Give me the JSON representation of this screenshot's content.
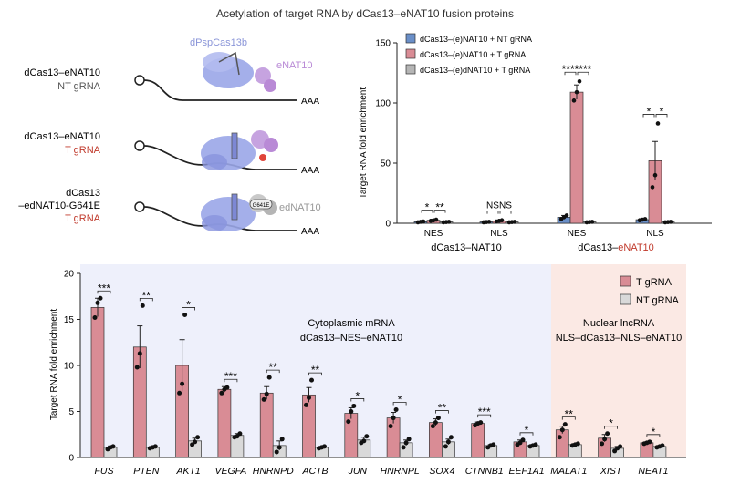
{
  "title": "Acetylation of target RNA by dCas13–eNAT10 fusion proteins",
  "colors": {
    "t_grna": "#d98c95",
    "nt_grna": "#d9d9d9",
    "nt_blue": "#6a8fc8",
    "dead": "#b5b5b5",
    "red_text": "#c0392b",
    "cas_purple": "#9aa6e8",
    "nat_purple": "#b98ad6",
    "cyto_bg": "#eef0fb",
    "nuc_bg": "#fbe9e4"
  },
  "schematic": {
    "constructs": [
      {
        "line1": "dCas13–eNAT10",
        "line2": "",
        "grna": "NT gRNA",
        "grna_red": false
      },
      {
        "line1": "dCas13–eNAT10",
        "line2": "",
        "grna": "T gRNA",
        "grna_red": true
      },
      {
        "line1": "dCas13",
        "line2": "–edNAT10-G641E",
        "grna": "T gRNA",
        "grna_red": true
      }
    ],
    "protein_label": "dPspCas13b",
    "enzyme_label": "eNAT10",
    "dead_enzyme_label": "edNAT10",
    "mutation_badge": "G641E",
    "polya": "AAA"
  },
  "chart_data": [
    {
      "type": "bar",
      "id": "top",
      "ylabel": "Target RNA fold enrichment",
      "ylim": [
        0,
        150
      ],
      "yticks": [
        0,
        50,
        100,
        150
      ],
      "legend": [
        "dCas13–(e)NAT10 + NT gRNA",
        "dCas13–(e)NAT10 + T gRNA",
        "dCas13–(e)dNAT10 + T gRNA"
      ],
      "legend_position": "top-left",
      "groups": [
        {
          "label": "NES",
          "values": [
            1.2,
            2.5,
            1.0
          ],
          "errors": [
            0.4,
            0.8,
            0.3
          ],
          "points": [
            [
              0.8,
              1.2,
              1.5
            ],
            [
              2.0,
              2.4,
              3.0
            ],
            [
              0.8,
              1.0,
              1.2
            ]
          ],
          "sig": [
            "*",
            "**"
          ]
        },
        {
          "label": "NLS",
          "values": [
            1.0,
            2.0,
            1.0
          ],
          "errors": [
            0.3,
            0.6,
            0.3
          ],
          "points": [
            [
              0.8,
              1.0,
              1.2
            ],
            [
              1.5,
              2.0,
              2.5
            ],
            [
              0.8,
              1.0,
              1.2
            ]
          ],
          "sig": [
            "NS",
            "NS"
          ]
        },
        {
          "label": "NES",
          "values": [
            5.0,
            109.0,
            1.0
          ],
          "errors": [
            1.5,
            6.0,
            0.3
          ],
          "points": [
            [
              3.5,
              5.0,
              6.5
            ],
            [
              102,
              109,
              118
            ],
            [
              0.8,
              1.0,
              1.2
            ]
          ],
          "sig": [
            "****",
            "****"
          ]
        },
        {
          "label": "NLS",
          "values": [
            3.0,
            52.0,
            1.0
          ],
          "errors": [
            0.8,
            16.0,
            0.3
          ],
          "points": [
            [
              2.5,
              3.0,
              3.5
            ],
            [
              30,
              40,
              83
            ],
            [
              0.8,
              1.0,
              1.2
            ]
          ],
          "sig": [
            "*",
            "*"
          ]
        }
      ],
      "construct_labels": [
        {
          "text": "dCas13–NAT10",
          "red": false
        },
        {
          "text": "dCas13–",
          "red_part": "eNAT10",
          "red": true
        }
      ]
    },
    {
      "type": "bar",
      "id": "bottom",
      "ylabel": "Target RNA fold enrichment",
      "ylim": [
        0,
        20
      ],
      "yticks": [
        0,
        5,
        10,
        15,
        20
      ],
      "legend": [
        "T gRNA",
        "NT gRNA"
      ],
      "legend_position": "top-right",
      "categories": [
        "FUS",
        "PTEN",
        "AKT1",
        "VEGFA",
        "HNRNPD",
        "ACTB",
        "JUN",
        "HNRNPL",
        "SOX4",
        "CTNNB1",
        "EEF1A1",
        "MALAT1",
        "XIST",
        "NEAT1"
      ],
      "series": [
        {
          "name": "T gRNA",
          "values": [
            16.3,
            12.0,
            10.0,
            7.4,
            7.0,
            6.8,
            4.8,
            4.3,
            3.8,
            3.7,
            1.7,
            3.0,
            2.1,
            1.6
          ],
          "errors": [
            1.0,
            2.3,
            2.8,
            0.3,
            0.7,
            0.8,
            0.6,
            0.6,
            0.4,
            0.15,
            0.2,
            0.4,
            0.4,
            0.1
          ]
        },
        {
          "name": "NT gRNA",
          "values": [
            1.1,
            1.1,
            1.8,
            2.4,
            1.3,
            1.1,
            1.9,
            1.6,
            1.7,
            1.3,
            1.3,
            1.4,
            1.0,
            1.2
          ],
          "errors": [
            0.15,
            0.1,
            0.3,
            0.2,
            0.5,
            0.1,
            0.3,
            0.3,
            0.3,
            0.1,
            0.1,
            0.1,
            0.2,
            0.1
          ]
        }
      ],
      "points": [
        [
          [
            15.2,
            16.8,
            17.3
          ],
          [
            0.9,
            1.1,
            1.2
          ]
        ],
        [
          [
            9.8,
            11.3,
            16.5
          ],
          [
            1.0,
            1.1,
            1.2
          ]
        ],
        [
          [
            7.0,
            8.0,
            15.5
          ],
          [
            1.4,
            1.7,
            2.2
          ]
        ],
        [
          [
            7.0,
            7.4,
            7.6
          ],
          [
            2.2,
            2.3,
            2.6
          ]
        ],
        [
          [
            6.3,
            6.9,
            8.7
          ],
          [
            0.6,
            1.1,
            2.0
          ]
        ],
        [
          [
            5.7,
            6.5,
            8.4
          ],
          [
            1.0,
            1.1,
            1.2
          ]
        ],
        [
          [
            3.9,
            5.0,
            5.6
          ],
          [
            1.6,
            1.8,
            2.3
          ]
        ],
        [
          [
            3.4,
            4.3,
            5.2
          ],
          [
            1.1,
            1.6,
            2.0
          ]
        ],
        [
          [
            3.4,
            3.8,
            4.3
          ],
          [
            1.2,
            1.7,
            2.2
          ]
        ],
        [
          [
            3.5,
            3.7,
            3.8
          ],
          [
            1.1,
            1.3,
            1.4
          ]
        ],
        [
          [
            1.4,
            1.6,
            1.9
          ],
          [
            1.2,
            1.3,
            1.4
          ]
        ],
        [
          [
            2.2,
            3.0,
            3.6
          ],
          [
            1.3,
            1.4,
            1.5
          ]
        ],
        [
          [
            1.5,
            2.0,
            2.6
          ],
          [
            0.7,
            1.0,
            1.2
          ]
        ],
        [
          [
            1.5,
            1.6,
            1.7
          ],
          [
            1.1,
            1.2,
            1.3
          ]
        ]
      ],
      "significance": [
        "***",
        "**",
        "*",
        "***",
        "**",
        "**",
        "*",
        "*",
        "**",
        "***",
        "*",
        "**",
        "*",
        "*"
      ],
      "regions": [
        {
          "name": "Cytoplasmic mRNA",
          "subtitle": "dCas13–NES–eNAT10",
          "from": 0,
          "to": 10
        },
        {
          "name": "Nuclear lncRNA",
          "subtitle": "NLS–dCas13–NLS–eNAT10",
          "from": 11,
          "to": 13
        }
      ]
    }
  ]
}
